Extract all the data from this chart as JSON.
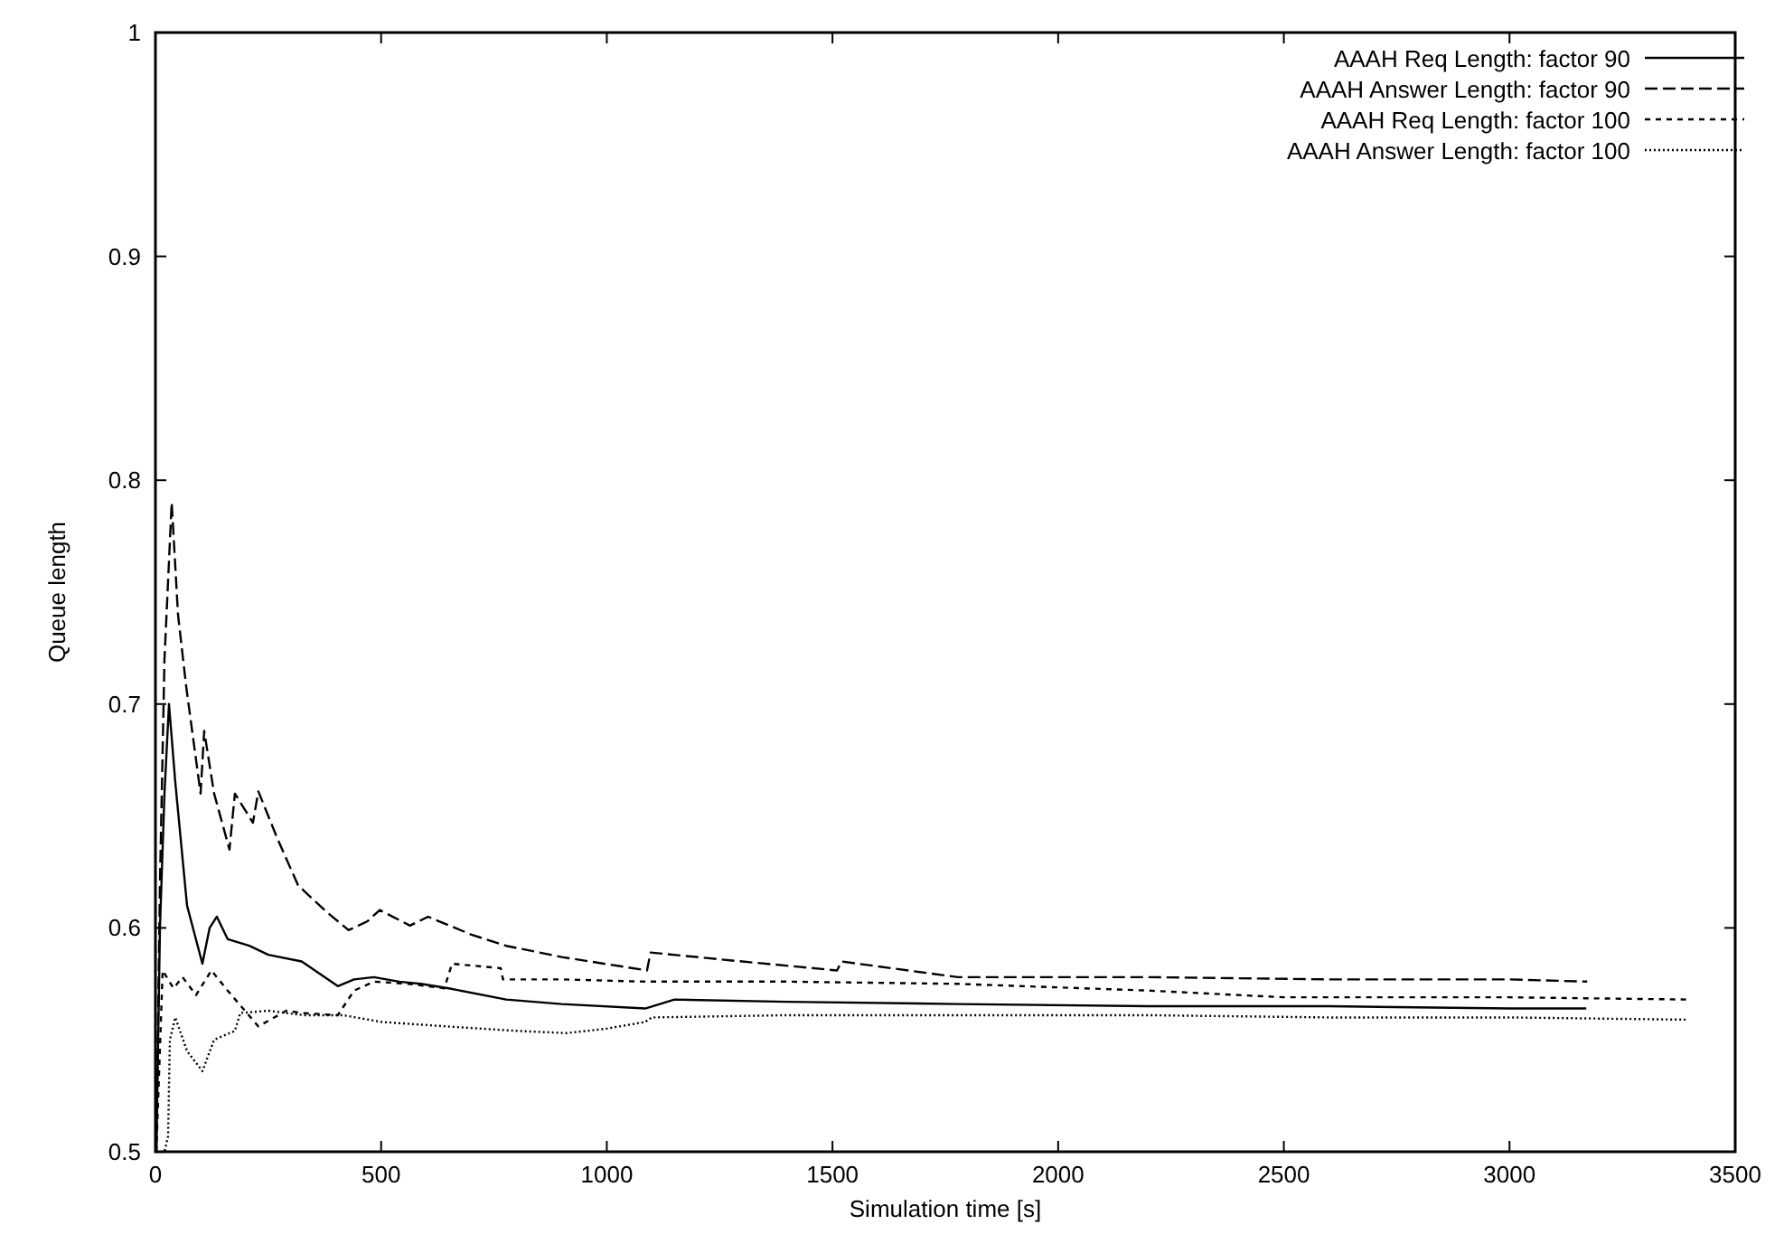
{
  "chart_data": {
    "type": "line",
    "xlabel": "Simulation time [s]",
    "ylabel": "Queue length",
    "xlim": [
      0,
      3500
    ],
    "ylim": [
      0.5,
      1
    ],
    "xticks": [
      0,
      500,
      1000,
      1500,
      2000,
      2500,
      3000,
      3500
    ],
    "yticks": [
      0.5,
      0.6,
      0.7,
      0.8,
      0.9,
      1
    ],
    "grid": false,
    "legend": "top right",
    "marker": "none",
    "series": [
      {
        "name": "AAAH Req Length: factor 90",
        "color": "#000000",
        "line_style": "solid",
        "x": [
          2,
          10,
          20,
          30,
          44,
          70,
          104,
          120,
          136,
          160,
          208,
          250,
          324,
          404,
          440,
          484,
          540,
          588,
          650,
          777,
          900,
          1085,
          1150,
          1400,
          1778,
          2200,
          2600,
          3000,
          3170
        ],
        "values": [
          0.5,
          0.6,
          0.66,
          0.7,
          0.665,
          0.61,
          0.584,
          0.6,
          0.605,
          0.595,
          0.592,
          0.588,
          0.585,
          0.574,
          0.577,
          0.578,
          0.576,
          0.575,
          0.573,
          0.568,
          0.566,
          0.564,
          0.568,
          0.567,
          0.566,
          0.565,
          0.565,
          0.564,
          0.564
        ]
      },
      {
        "name": "AAAH Answer Length: factor 90",
        "color": "#000000",
        "line_style": "dashed",
        "x": [
          2,
          10,
          20,
          36,
          50,
          68,
          100,
          108,
          130,
          164,
          176,
          216,
          228,
          270,
          316,
          380,
          428,
          470,
          497,
          564,
          604,
          700,
          777,
          900,
          1089,
          1097,
          1300,
          1510,
          1520,
          1778,
          2200,
          2600,
          3000,
          3172
        ],
        "values": [
          0.5,
          0.62,
          0.72,
          0.79,
          0.74,
          0.708,
          0.66,
          0.688,
          0.66,
          0.635,
          0.66,
          0.647,
          0.661,
          0.64,
          0.619,
          0.607,
          0.599,
          0.603,
          0.608,
          0.601,
          0.605,
          0.597,
          0.592,
          0.587,
          0.581,
          0.589,
          0.585,
          0.581,
          0.585,
          0.578,
          0.578,
          0.577,
          0.577,
          0.576
        ]
      },
      {
        "name": "AAAH Req Length: factor 100",
        "color": "#000000",
        "line_style": "short-dashed",
        "x": [
          2,
          16,
          40,
          60,
          90,
          124,
          160,
          228,
          290,
          324,
          404,
          440,
          484,
          560,
          640,
          657,
          765,
          770,
          900,
          1085,
          1400,
          1778,
          2200,
          2500,
          3000,
          3392
        ],
        "values": [
          0.5,
          0.581,
          0.573,
          0.578,
          0.57,
          0.581,
          0.572,
          0.556,
          0.563,
          0.562,
          0.561,
          0.572,
          0.576,
          0.575,
          0.573,
          0.584,
          0.582,
          0.577,
          0.577,
          0.576,
          0.576,
          0.575,
          0.572,
          0.569,
          0.569,
          0.568
        ]
      },
      {
        "name": "AAAH Answer Length: factor 100",
        "color": "#000000",
        "line_style": "dotted",
        "x": [
          2,
          20,
          28,
          32,
          44,
          70,
          104,
          130,
          176,
          188,
          250,
          330,
          416,
          500,
          644,
          800,
          911,
          1000,
          1085,
          1100,
          1400,
          1778,
          2200,
          2600,
          3000,
          3392
        ],
        "values": [
          0.5,
          0.5,
          0.507,
          0.55,
          0.56,
          0.545,
          0.536,
          0.55,
          0.554,
          0.562,
          0.563,
          0.561,
          0.561,
          0.558,
          0.556,
          0.554,
          0.553,
          0.555,
          0.558,
          0.56,
          0.561,
          0.561,
          0.561,
          0.56,
          0.56,
          0.559
        ]
      }
    ]
  }
}
